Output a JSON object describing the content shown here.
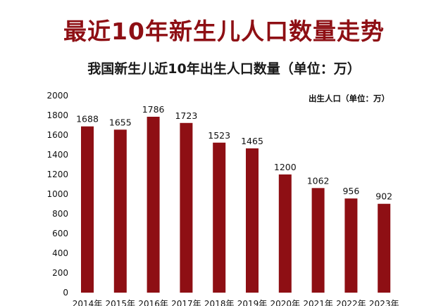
{
  "page": {
    "main_title": "最近10年新生儿人口数量走势",
    "subtitle": "我国新生儿近10年出生人口数量（单位：万）"
  },
  "colors": {
    "bar": "#8e0f14",
    "title": "#8e0f14",
    "background": "#ffffff"
  },
  "chart_data": {
    "type": "bar",
    "categories": [
      "2014年",
      "2015年",
      "2016年",
      "2017年",
      "2018年",
      "2019年",
      "2020年",
      "2021年",
      "2022年",
      "2023年"
    ],
    "series": [
      {
        "name": "出生人口（单位：万）",
        "values": [
          1688,
          1655,
          1786,
          1723,
          1523,
          1465,
          1200,
          1062,
          956,
          902
        ]
      }
    ],
    "ylim": [
      0,
      2000
    ],
    "yticks": [
      0,
      200,
      400,
      600,
      800,
      1000,
      1200,
      1400,
      1600,
      1800,
      2000
    ],
    "grid": false,
    "legend_position": "top-right"
  }
}
